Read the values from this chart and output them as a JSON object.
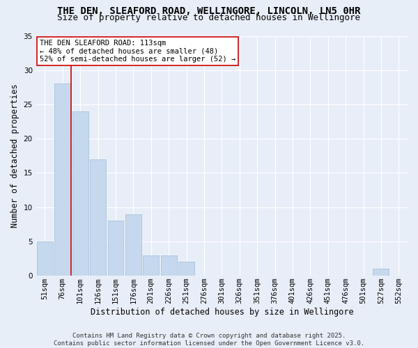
{
  "title_line1": "THE DEN, SLEAFORD ROAD, WELLINGORE, LINCOLN, LN5 0HR",
  "title_line2": "Size of property relative to detached houses in Wellingore",
  "xlabel": "Distribution of detached houses by size in Wellingore",
  "ylabel": "Number of detached properties",
  "categories": [
    "51sqm",
    "76sqm",
    "101sqm",
    "126sqm",
    "151sqm",
    "176sqm",
    "201sqm",
    "226sqm",
    "251sqm",
    "276sqm",
    "301sqm",
    "326sqm",
    "351sqm",
    "376sqm",
    "401sqm",
    "426sqm",
    "451sqm",
    "476sqm",
    "501sqm",
    "527sqm",
    "552sqm"
  ],
  "values": [
    5,
    28,
    24,
    17,
    8,
    9,
    3,
    3,
    2,
    0,
    0,
    0,
    0,
    0,
    0,
    0,
    0,
    0,
    0,
    1,
    0
  ],
  "bar_color": "#c5d8ed",
  "bar_edge_color": "#a0bcd8",
  "background_color": "#e8eef8",
  "grid_color": "#ffffff",
  "vline_color": "#cc0000",
  "vline_x_index": 1.5,
  "annotation_text": "THE DEN SLEAFORD ROAD: 113sqm\n← 48% of detached houses are smaller (48)\n52% of semi-detached houses are larger (52) →",
  "annotation_box_color": "#ffffff",
  "annotation_box_edge": "#cc0000",
  "ylim": [
    0,
    35
  ],
  "yticks": [
    0,
    5,
    10,
    15,
    20,
    25,
    30,
    35
  ],
  "footer_line1": "Contains HM Land Registry data © Crown copyright and database right 2025.",
  "footer_line2": "Contains public sector information licensed under the Open Government Licence v3.0.",
  "title_fontsize": 10,
  "subtitle_fontsize": 9,
  "axis_label_fontsize": 8.5,
  "tick_fontsize": 7.5,
  "annotation_fontsize": 7.5,
  "footer_fontsize": 6.5
}
